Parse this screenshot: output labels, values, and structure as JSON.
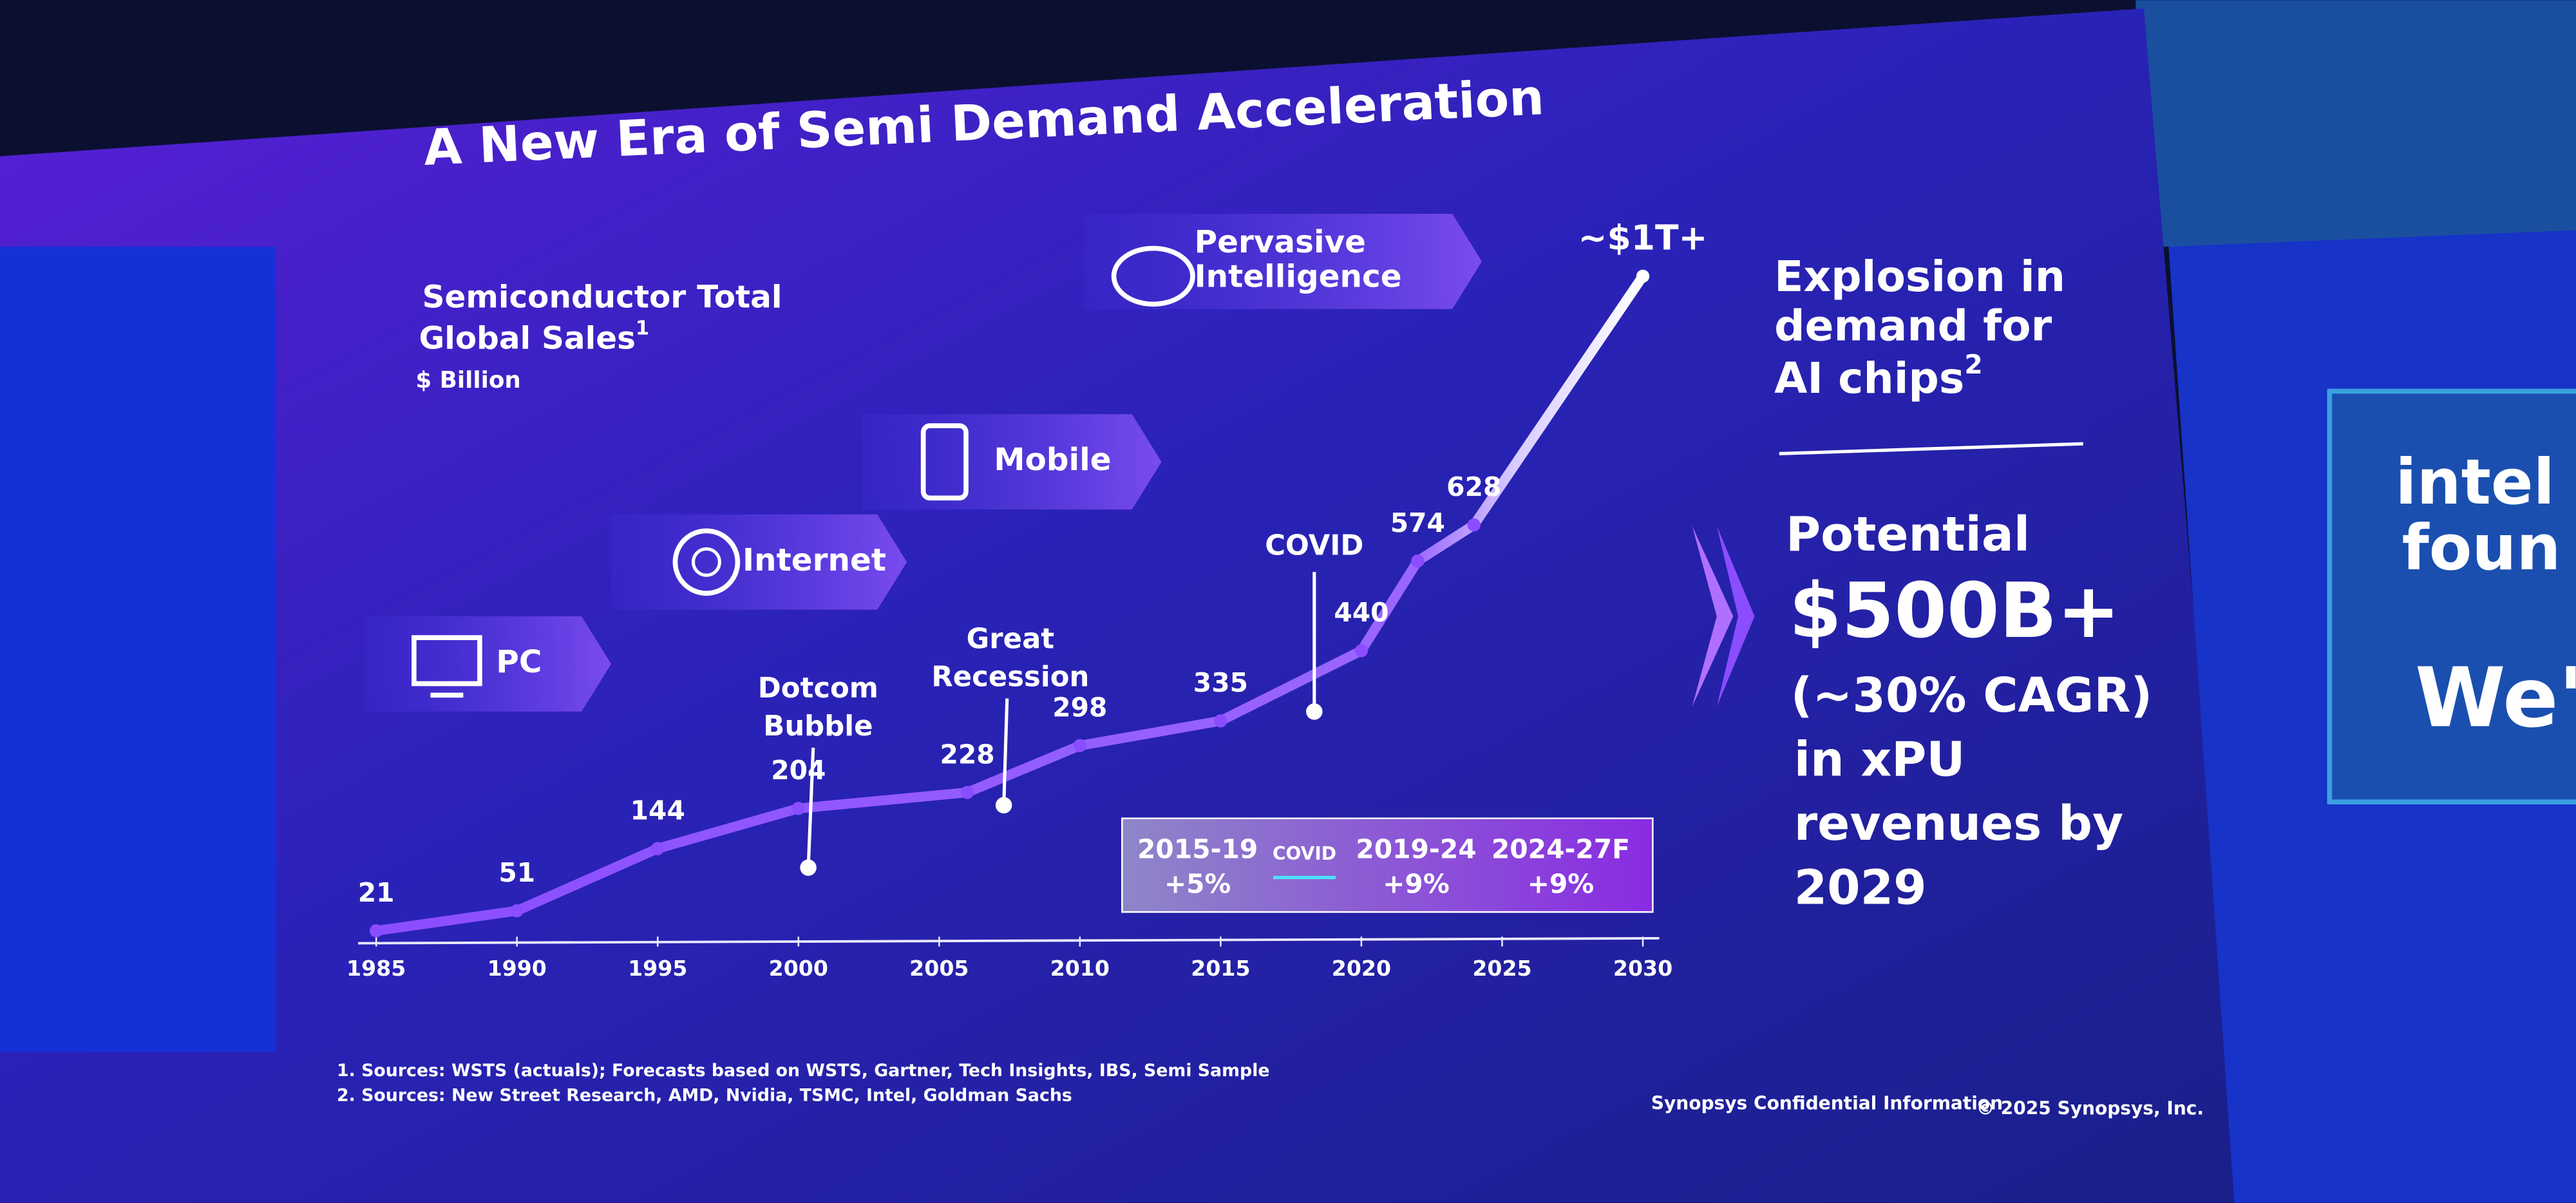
{
  "chart_data": {
    "type": "line",
    "title": "A New Era of Semi Demand Acceleration",
    "subtitle": [
      "Semiconductor Total",
      "Global Sales"
    ],
    "subtitle_note": "1",
    "unit": "$ Billion",
    "x": [
      1985,
      1990,
      1995,
      2000,
      2006,
      2010,
      2015,
      2020,
      2022,
      2024,
      2030
    ],
    "xlim": [
      1985,
      2030
    ],
    "xticks": [
      1985,
      1990,
      1995,
      2000,
      2005,
      2010,
      2015,
      2020,
      2025,
      2030
    ],
    "series": [
      {
        "color": "#8a4dff",
        "values": [
          21,
          51,
          144,
          204,
          228,
          298,
          335,
          440,
          574,
          628,
          1000
        ],
        "value_labels": [
          "21",
          "51",
          "144",
          "204",
          "228",
          "298",
          "335",
          "440",
          "574",
          "628",
          "~$1T+"
        ]
      }
    ],
    "eras": [
      [
        "PC"
      ],
      [
        "Internet"
      ],
      [
        "Mobile"
      ],
      [
        "Pervasive",
        "Intelligence"
      ]
    ],
    "annotations": [
      [
        "Dotcom",
        "Bubble"
      ],
      [
        "Great",
        "Recession"
      ],
      [
        "COVID"
      ]
    ],
    "cagr": [
      {
        "period": "2015-19",
        "growth": "+5%"
      },
      {
        "period": "2019-24",
        "growth": "+9%"
      },
      {
        "period": "2024-27F",
        "growth": "+9%"
      }
    ],
    "cagr_note": "COVID"
  },
  "side_panel": {
    "heading": [
      "Explosion in",
      "demand for",
      "AI chips"
    ],
    "heading_note": "2",
    "lead": "Potential",
    "amount": "$500B+",
    "rate": "(~30% CAGR)",
    "body": [
      "in xPU",
      "revenues by",
      "2029"
    ]
  },
  "footnotes": [
    "1. Sources: WSTS (actuals); Forecasts based on WSTS, Gartner, Tech Insights, IBS, Semi Sample",
    "2. Sources: New Street Research, AMD, Nvidia, TSMC, Intel, Goldman Sachs"
  ],
  "footer": {
    "confidential": "Synopsys Confidential Information",
    "copyright": "© 2025 Synopsys, Inc."
  },
  "background_screen": {
    "brand": [
      "intel",
      "foun"
    ],
    "text": "We'"
  }
}
